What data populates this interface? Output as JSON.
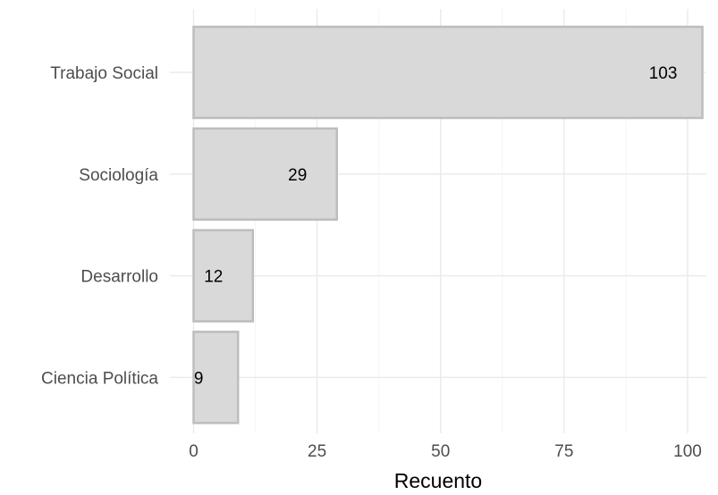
{
  "chart_data": {
    "type": "bar",
    "orientation": "horizontal",
    "categories": [
      "Trabajo Social",
      "Sociología",
      "Desarrollo",
      "Ciencia Política"
    ],
    "values": [
      103,
      29,
      12,
      9
    ],
    "data_labels": [
      "103",
      "29",
      "12",
      "9"
    ],
    "title": "",
    "xlabel": "Recuento",
    "ylabel": "",
    "xlim": [
      0,
      105
    ],
    "xticks": [
      0,
      25,
      50,
      75,
      100
    ],
    "grid": true,
    "legend": "none",
    "colors": {
      "bar_fill": "#d9d9d9",
      "bar_stroke": "#bdbdbd",
      "grid_major": "#ebebeb",
      "grid_minor": "#f5f5f5"
    }
  }
}
